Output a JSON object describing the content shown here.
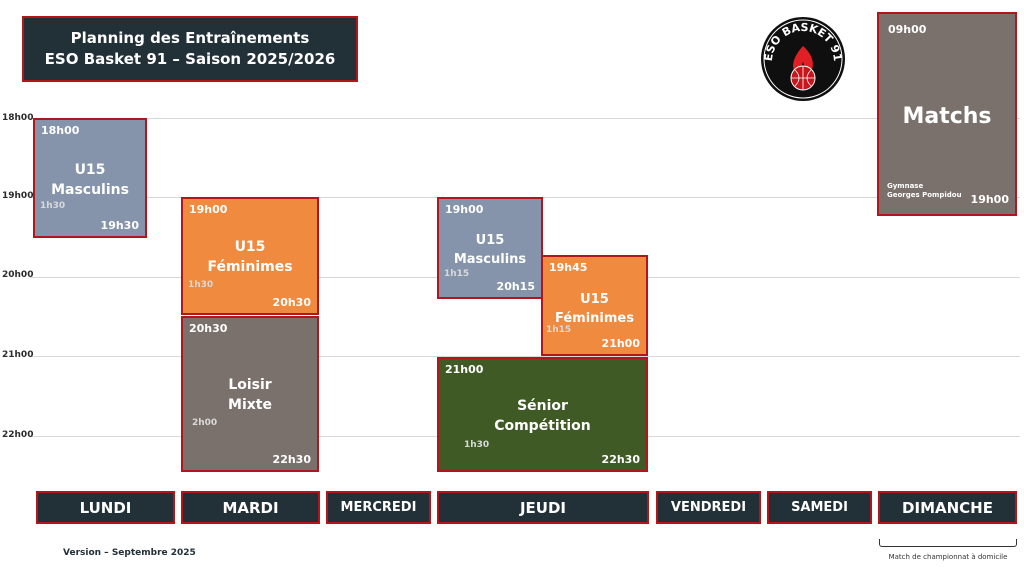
{
  "header": {
    "title_line1": "Planning des Entraînements",
    "title_line2": "ESO Basket 91 – Saison 2025/2026"
  },
  "logo": {
    "text": "ESO BASKET 91",
    "icon": "basketball-flame-icon"
  },
  "hours": [
    "18h00",
    "19h00",
    "20h00",
    "21h00",
    "22h00"
  ],
  "days": [
    "LUNDI",
    "MARDI",
    "MERCREDI",
    "JEUDI",
    "VENDREDI",
    "SAMEDI",
    "DIMANCHE"
  ],
  "sessions": {
    "lundi_u15m": {
      "start": "18h00",
      "end": "19h30",
      "duration": "1h30",
      "line1": "U15",
      "line2": "Masculins"
    },
    "mardi_u15f": {
      "start": "19h00",
      "end": "20h30",
      "duration": "1h30",
      "line1": "U15",
      "line2": "Féminimes"
    },
    "mardi_loisir": {
      "start": "20h30",
      "end": "22h30",
      "duration": "2h00",
      "line1": "Loisir",
      "line2": "Mixte"
    },
    "jeudi_u15m": {
      "start": "19h00",
      "end": "20h15",
      "duration": "1h15",
      "line1": "U15",
      "line2": "Masculins"
    },
    "jeudi_u15f": {
      "start": "19h45",
      "end": "21h00",
      "duration": "1h15",
      "line1": "U15",
      "line2": "Féminimes"
    },
    "jeudi_senior": {
      "start": "21h00",
      "end": "22h30",
      "duration": "1h30",
      "line1": "Sénior",
      "line2": "Compétition"
    },
    "dimanche_matchs": {
      "start": "09h00",
      "end": "19h00",
      "title": "Matchs",
      "venue_line1": "Gymnase",
      "venue_line2": "Georges Pompidou"
    }
  },
  "footer": {
    "version": "Version – Septembre 2025",
    "dimanche_note": "Match de championnat à domicile"
  },
  "colors": {
    "navy": "#223038",
    "red_border": "#b3151d",
    "blue": "#8594ab",
    "orange": "#ef8a3e",
    "gray": "#7a716d",
    "green": "#3f5a25"
  }
}
